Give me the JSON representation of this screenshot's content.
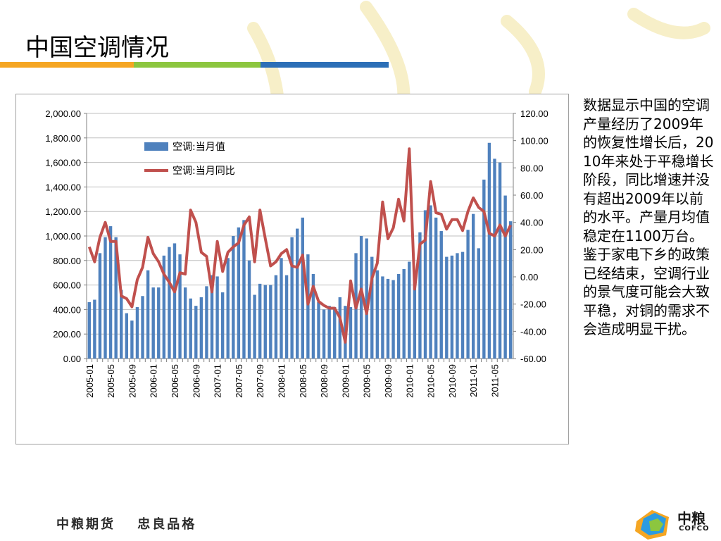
{
  "slide": {
    "title": "中国空调情况",
    "title_bar_colors": [
      "#f5a623",
      "#8cc63f",
      "#2c6fb7"
    ],
    "side_text": "数据显示中国的空调产量经历了2009年的恢复性增长后，2010年来处于平稳增长阶段，同比增速并没有超出2009年以前的水平。产量月均值稳定在1100万台。鉴于家电下乡的政策已经结束，空调行业的景气度可能会大致平稳，对铜的需求不会造成明显干扰。",
    "footer_left": [
      "中粮期货",
      "忠良品格"
    ],
    "logo_text": "中粮",
    "logo_sub": "COFCO"
  },
  "chart_data": {
    "type": "bar",
    "x": [
      "2005-01",
      "2005-02",
      "2005-03",
      "2005-04",
      "2005-05",
      "2005-06",
      "2005-07",
      "2005-08",
      "2005-09",
      "2005-10",
      "2005-11",
      "2005-12",
      "2006-01",
      "2006-02",
      "2006-03",
      "2006-04",
      "2006-05",
      "2006-06",
      "2006-07",
      "2006-08",
      "2006-09",
      "2006-10",
      "2006-11",
      "2006-12",
      "2007-01",
      "2007-02",
      "2007-03",
      "2007-04",
      "2007-05",
      "2007-06",
      "2007-07",
      "2007-08",
      "2007-09",
      "2007-10",
      "2007-11",
      "2007-12",
      "2008-01",
      "2008-02",
      "2008-03",
      "2008-04",
      "2008-05",
      "2008-06",
      "2008-07",
      "2008-08",
      "2008-09",
      "2008-10",
      "2008-11",
      "2008-12",
      "2009-01",
      "2009-02",
      "2009-03",
      "2009-04",
      "2009-05",
      "2009-06",
      "2009-07",
      "2009-08",
      "2009-09",
      "2009-10",
      "2009-11",
      "2009-12",
      "2010-01",
      "2010-02",
      "2010-03",
      "2010-04",
      "2010-05",
      "2010-06",
      "2010-07",
      "2010-08",
      "2010-09",
      "2010-10",
      "2010-11",
      "2010-12",
      "2011-01",
      "2011-02",
      "2011-03",
      "2011-04",
      "2011-05",
      "2011-06",
      "2011-07",
      "2011-08"
    ],
    "x_tick_labels": [
      "2005-01",
      "2005-05",
      "2005-09",
      "2006-01",
      "2006-05",
      "2006-09",
      "2007-01",
      "2007-05",
      "2007-09",
      "2008-01",
      "2008-05",
      "2008-09",
      "2009-01",
      "2009-05",
      "2009-09",
      "2010-01",
      "2010-05",
      "2010-09",
      "2011-01",
      "2011-05"
    ],
    "series": [
      {
        "name": "空调:当月值",
        "axis": "left",
        "kind": "bar",
        "color": "#4f81bd",
        "values": [
          460,
          480,
          860,
          990,
          1080,
          990,
          560,
          370,
          310,
          420,
          510,
          720,
          580,
          580,
          840,
          910,
          940,
          850,
          580,
          490,
          430,
          500,
          590,
          680,
          670,
          540,
          820,
          1000,
          1070,
          1130,
          800,
          520,
          610,
          600,
          600,
          680,
          820,
          680,
          990,
          1060,
          1150,
          850,
          690,
          460,
          400,
          430,
          420,
          500,
          430,
          420,
          860,
          1000,
          980,
          830,
          720,
          670,
          650,
          640,
          690,
          730,
          790,
          700,
          1030,
          1210,
          1250,
          1150,
          1040,
          830,
          840,
          860,
          870,
          1050,
          1180,
          900,
          1460,
          1760,
          1630,
          1600,
          1330,
          1120
        ]
      },
      {
        "name": "空调:当月同比",
        "axis": "right",
        "kind": "line",
        "color": "#c0504d",
        "values": [
          22,
          11,
          29,
          40,
          26,
          26,
          -14,
          -16,
          -22,
          -2,
          7,
          29,
          17,
          11,
          2,
          -4,
          -11,
          3,
          2,
          49,
          40,
          18,
          15,
          -11,
          26,
          4,
          18,
          22,
          25,
          38,
          44,
          11,
          49,
          28,
          8,
          11,
          17,
          20,
          8,
          7,
          16,
          -20,
          -7,
          -18,
          -21,
          -23,
          -23,
          -30,
          -48,
          -3,
          -23,
          -9,
          -27,
          -1,
          10,
          55,
          28,
          36,
          57,
          41,
          94,
          -9,
          24,
          27,
          70,
          47,
          46,
          35,
          42,
          42,
          34,
          48,
          58,
          51,
          48,
          32,
          30,
          38,
          30,
          38
        ]
      }
    ],
    "y_left": {
      "range": [
        0,
        2000
      ],
      "ticks": [
        "0.00",
        "200.00",
        "400.00",
        "600.00",
        "800.00",
        "1,000.00",
        "1,200.00",
        "1,400.00",
        "1,600.00",
        "1,800.00",
        "2,000.00"
      ]
    },
    "y_right": {
      "range": [
        -60,
        120
      ],
      "ticks": [
        "-60.00",
        "-40.00",
        "-20.00",
        "0.00",
        "20.00",
        "40.00",
        "60.00",
        "80.00",
        "100.00",
        "120.00"
      ]
    },
    "legend_position": "top-left",
    "grid": true
  }
}
